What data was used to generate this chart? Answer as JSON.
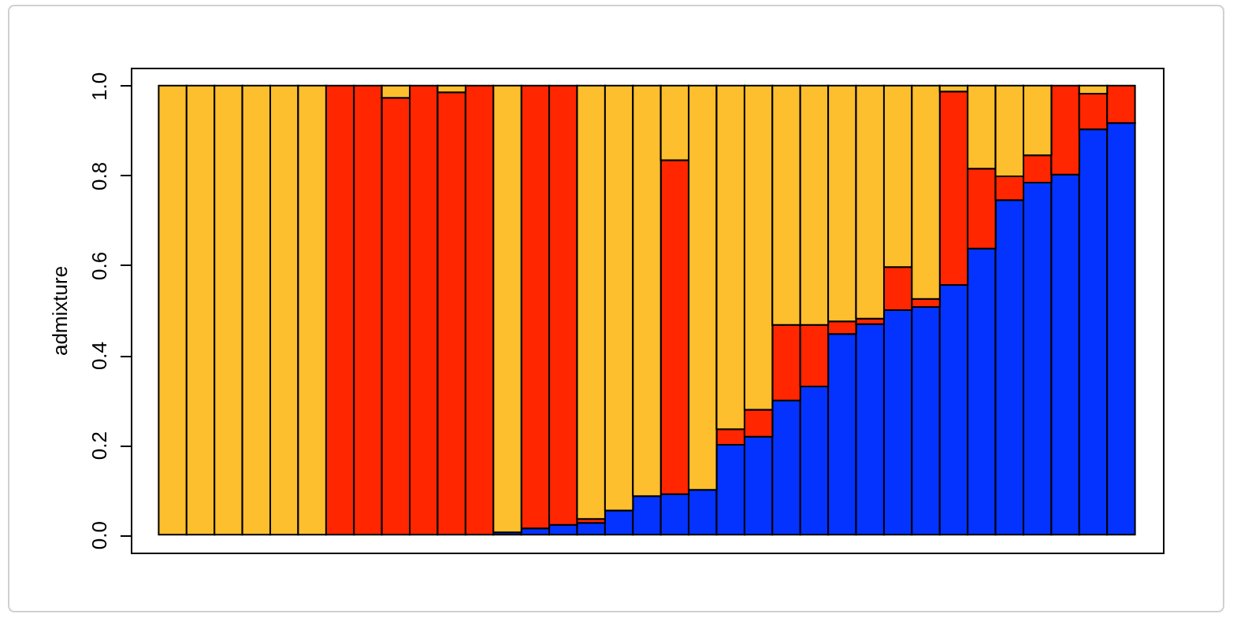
{
  "chart_data": {
    "type": "bar",
    "stacked": true,
    "ylabel": "admixture",
    "categories": [
      null,
      null,
      null,
      null,
      null,
      null,
      null,
      null,
      null,
      null,
      null,
      null,
      null,
      null,
      null,
      null,
      null,
      null,
      null,
      null,
      null,
      null,
      null,
      null,
      null,
      null,
      null,
      null,
      null,
      null,
      null,
      null,
      null,
      null,
      null
    ],
    "series": [
      {
        "color": "#0433ff",
        "values": [
          0,
          0,
          0,
          0,
          0,
          0,
          0,
          0,
          0,
          0,
          0,
          0,
          0.005,
          0.014,
          0.022,
          0.026,
          0.054,
          0.086,
          0.09,
          0.1,
          0.2,
          0.218,
          0.299,
          0.33,
          0.447,
          0.469,
          0.5,
          0.507,
          0.556,
          0.637,
          0.745,
          0.784,
          0.802,
          0.903,
          0.917
        ]
      },
      {
        "color": "#ff2600",
        "values": [
          0,
          0,
          0,
          0,
          0,
          0,
          1,
          1,
          0.973,
          1,
          0.985,
          1,
          0,
          0.986,
          0.978,
          0.009,
          0,
          0,
          0.744,
          0,
          0.035,
          0.06,
          0.168,
          0.137,
          0.028,
          0.012,
          0.096,
          0.018,
          0.431,
          0.178,
          0.053,
          0.061,
          0.198,
          0.079,
          0.083
        ]
      },
      {
        "color": "#fdbf2d",
        "values": [
          1,
          1,
          1,
          1,
          1,
          1,
          0,
          0,
          0.027,
          0,
          0.015,
          0,
          0.995,
          0,
          0,
          0.965,
          0.946,
          0.914,
          0.166,
          0.9,
          0.765,
          0.722,
          0.533,
          0.533,
          0.525,
          0.519,
          0.404,
          0.475,
          0.013,
          0.185,
          0.202,
          0.155,
          0,
          0.018,
          0
        ]
      }
    ],
    "ylim": [
      -0.04,
      1.04
    ],
    "yticks": [
      {
        "value": 0,
        "label": "0.0"
      },
      0.2,
      0.4,
      0.6,
      0.8,
      {
        "value": 1,
        "label": "1.0"
      }
    ],
    "grid": false,
    "legend": false
  }
}
